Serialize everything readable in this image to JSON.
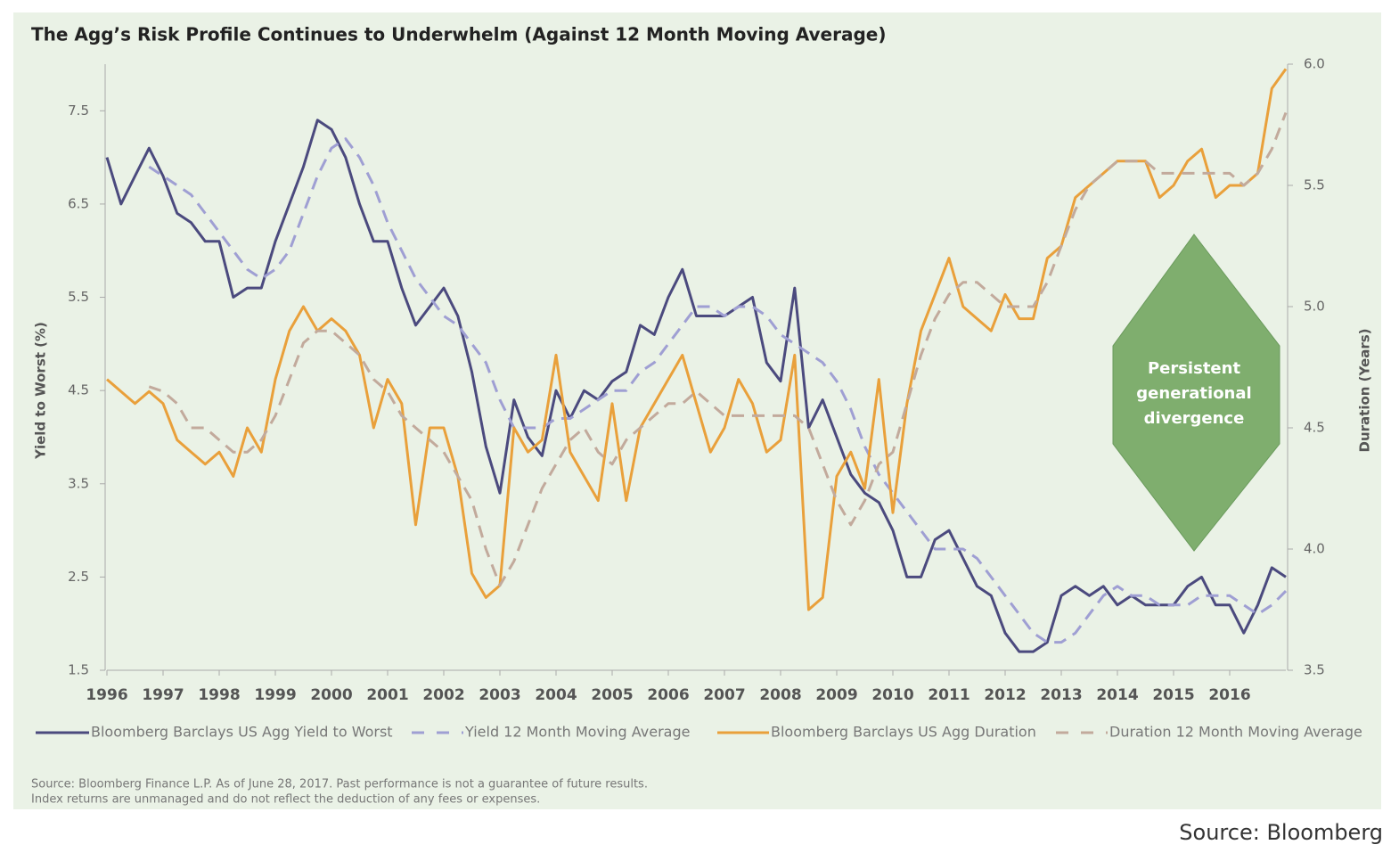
{
  "chart_data": {
    "type": "line",
    "title": "The Agg’s Risk Profile Continues to Underwhelm (Against 12 Month Moving Average)",
    "y_label": "Yield to Worst (%)",
    "y2_label": "Duration (Years)",
    "annotation": [
      "Persistent",
      "generational",
      "divergence"
    ],
    "footnote": [
      "Source: Bloomberg Finance L.P. As of June 28, 2017. Past performance is not a guarantee of future results.",
      "Index returns are unmanaged and do not reflect the deduction of any fees or expenses."
    ],
    "source": "Source: Bloomberg",
    "xlim": [
      1996,
      2017
    ],
    "xticks": [
      1996,
      1997,
      1998,
      1999,
      2000,
      2001,
      2002,
      2003,
      2004,
      2005,
      2006,
      2007,
      2008,
      2009,
      2010,
      2011,
      2012,
      2013,
      2014,
      2015,
      2016
    ],
    "ylim": [
      1.5,
      8.0
    ],
    "yticks": [
      1.5,
      2.5,
      3.5,
      4.5,
      5.5,
      6.5,
      7.5
    ],
    "y2lim": [
      3.5,
      6.0
    ],
    "y2ticks": [
      3.5,
      {
        "value": 4,
        "label": "4.0"
      },
      4.5,
      {
        "value": 5,
        "label": "5.0"
      },
      5.5,
      {
        "value": 6,
        "label": "6.0"
      }
    ],
    "x": [
      1996,
      1996.25,
      1996.5,
      1996.75,
      1997,
      1997.25,
      1997.5,
      1997.75,
      1998,
      1998.25,
      1998.5,
      1998.75,
      1999,
      1999.25,
      1999.5,
      1999.75,
      2000,
      2000.25,
      2000.5,
      2000.75,
      2001,
      2001.25,
      2001.5,
      2001.75,
      2002,
      2002.25,
      2002.5,
      2002.75,
      2003,
      2003.25,
      2003.5,
      2003.75,
      2004,
      2004.25,
      2004.5,
      2004.75,
      2005,
      2005.25,
      2005.5,
      2005.75,
      2006,
      2006.25,
      2006.5,
      2006.75,
      2007,
      2007.25,
      2007.5,
      2007.75,
      2008,
      2008.25,
      2008.5,
      2008.75,
      2009,
      2009.25,
      2009.5,
      2009.75,
      2010,
      2010.25,
      2010.5,
      2010.75,
      2011,
      2011.25,
      2011.5,
      2011.75,
      2012,
      2012.25,
      2012.5,
      2012.75,
      2013,
      2013.25,
      2013.5,
      2013.75,
      2014,
      2014.25,
      2014.5,
      2014.75,
      2015,
      2015.25,
      2015.5,
      2015.75,
      2016,
      2016.25,
      2016.5,
      2016.75,
      2017
    ],
    "series": [
      {
        "name": "Bloomberg Barclays US Agg Yield to Worst",
        "color": "#4b4a7e",
        "dashed": false,
        "values": [
          7.0,
          6.5,
          6.8,
          7.1,
          6.8,
          6.4,
          6.3,
          6.1,
          6.1,
          5.5,
          5.6,
          5.6,
          6.1,
          6.5,
          6.9,
          7.4,
          7.3,
          7.0,
          6.5,
          6.1,
          6.1,
          5.6,
          5.2,
          5.4,
          5.6,
          5.3,
          4.7,
          3.9,
          3.4,
          4.4,
          4.0,
          3.8,
          4.5,
          4.2,
          4.5,
          4.4,
          4.6,
          4.7,
          5.2,
          5.1,
          5.5,
          5.8,
          5.3,
          5.3,
          5.3,
          5.4,
          5.5,
          4.8,
          4.6,
          5.6,
          4.1,
          4.4,
          4.0,
          3.6,
          3.4,
          3.3,
          3.0,
          2.5,
          2.5,
          2.9,
          3.0,
          2.7,
          2.4,
          2.3,
          1.9,
          1.7,
          1.7,
          1.8,
          2.3,
          2.4,
          2.3,
          2.4,
          2.2,
          2.3,
          2.2,
          2.2,
          2.2,
          2.4,
          2.5,
          2.2,
          2.2,
          1.9,
          2.2,
          2.6,
          2.5
        ]
      },
      {
        "name": "Yield 12 Month Moving Average",
        "color": "#9f9fd3",
        "dashed": true,
        "values": [
          null,
          null,
          null,
          6.9,
          6.8,
          6.7,
          6.6,
          6.4,
          6.2,
          6.0,
          5.8,
          5.7,
          5.8,
          6.0,
          6.4,
          6.8,
          7.1,
          7.2,
          7.0,
          6.7,
          6.3,
          6.0,
          5.7,
          5.5,
          5.3,
          5.2,
          5.0,
          4.8,
          4.4,
          4.1,
          4.1,
          4.1,
          4.2,
          4.2,
          4.3,
          4.4,
          4.5,
          4.5,
          4.7,
          4.8,
          5.0,
          5.2,
          5.4,
          5.4,
          5.3,
          5.4,
          5.4,
          5.3,
          5.1,
          5.0,
          4.9,
          4.8,
          4.6,
          4.3,
          3.9,
          3.6,
          3.4,
          3.2,
          3.0,
          2.8,
          2.8,
          2.8,
          2.7,
          2.5,
          2.3,
          2.1,
          1.9,
          1.8,
          1.8,
          1.9,
          2.1,
          2.3,
          2.4,
          2.3,
          2.3,
          2.2,
          2.2,
          2.2,
          2.3,
          2.3,
          2.3,
          2.2,
          2.1,
          2.2,
          2.35
        ]
      },
      {
        "name": "Bloomberg Barclays US Agg Duration",
        "color": "#e9a03b",
        "dashed": false,
        "axis": "y2",
        "values": [
          4.7,
          4.65,
          4.6,
          4.65,
          4.6,
          4.45,
          4.4,
          4.35,
          4.4,
          4.3,
          4.5,
          4.4,
          4.7,
          4.9,
          5.0,
          4.9,
          4.95,
          4.9,
          4.8,
          4.5,
          4.7,
          4.6,
          4.1,
          4.5,
          4.5,
          4.3,
          3.9,
          3.8,
          3.85,
          4.5,
          4.4,
          4.45,
          4.8,
          4.4,
          4.3,
          4.2,
          4.6,
          4.2,
          4.5,
          4.6,
          4.7,
          4.8,
          4.6,
          4.4,
          4.5,
          4.7,
          4.6,
          4.4,
          4.45,
          4.8,
          3.75,
          3.8,
          4.3,
          4.4,
          4.25,
          4.7,
          4.15,
          4.6,
          4.9,
          5.05,
          5.2,
          5.0,
          4.95,
          4.9,
          5.05,
          4.95,
          4.95,
          5.2,
          5.25,
          5.45,
          5.5,
          5.55,
          5.6,
          5.6,
          5.6,
          5.45,
          5.5,
          5.6,
          5.65,
          5.45,
          5.5,
          5.5,
          5.55,
          5.9,
          5.98
        ]
      },
      {
        "name": "Duration 12 Month Moving Average",
        "color": "#c2aa9c",
        "dashed": true,
        "axis": "y2",
        "values": [
          null,
          null,
          null,
          4.67,
          4.65,
          4.6,
          4.5,
          4.5,
          4.45,
          4.4,
          4.4,
          4.45,
          4.55,
          4.7,
          4.85,
          4.9,
          4.9,
          4.85,
          4.8,
          4.7,
          4.65,
          4.55,
          4.5,
          4.45,
          4.4,
          4.3,
          4.2,
          4.0,
          3.85,
          3.95,
          4.1,
          4.25,
          4.35,
          4.45,
          4.5,
          4.4,
          4.35,
          4.45,
          4.5,
          4.55,
          4.6,
          4.6,
          4.65,
          4.6,
          4.55,
          4.55,
          4.55,
          4.55,
          4.55,
          4.55,
          4.5,
          4.35,
          4.2,
          4.1,
          4.2,
          4.35,
          4.4,
          4.6,
          4.8,
          4.95,
          5.05,
          5.1,
          5.1,
          5.05,
          5.0,
          5.0,
          5.0,
          5.1,
          5.25,
          5.4,
          5.5,
          5.55,
          5.6,
          5.6,
          5.6,
          5.55,
          5.55,
          5.55,
          5.55,
          5.55,
          5.55,
          5.5,
          5.55,
          5.65,
          5.8
        ]
      }
    ]
  }
}
